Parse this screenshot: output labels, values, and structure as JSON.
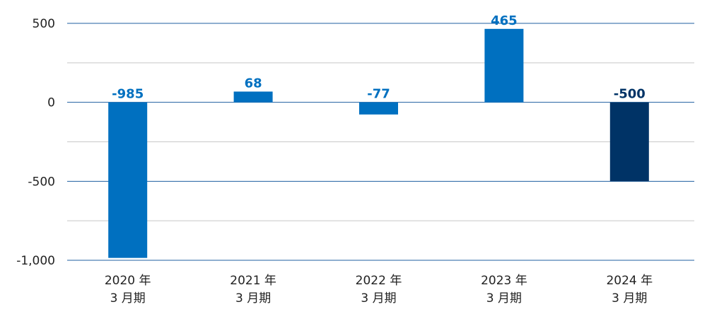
{
  "chart_data": {
    "type": "bar",
    "title": "",
    "xlabel": "",
    "ylabel": "",
    "categories": [
      [
        "2020 年",
        "3 月期"
      ],
      [
        "2021 年",
        "3 月期"
      ],
      [
        "2022 年",
        "3 月期"
      ],
      [
        "2023 年",
        "3 月期"
      ],
      [
        "2024 年",
        "3 月期"
      ]
    ],
    "values": [
      -985,
      68,
      -77,
      465,
      -500
    ],
    "value_labels": [
      "-985",
      "68",
      "-77",
      "465",
      "-500"
    ],
    "ylim": [
      -1000,
      500
    ],
    "yticks": [
      500,
      0,
      -500,
      -1000
    ],
    "ytick_labels": [
      "500",
      "0",
      "-500",
      "-1,000"
    ],
    "minor_gridlines": [
      250,
      -250,
      -750
    ],
    "grid": true,
    "colors": {
      "bar": "#0070c0",
      "bar_highlight": "#003366",
      "major_grid": "#1f5fa0",
      "minor_grid": "#c8c8c8",
      "label": "#0070c0",
      "label_highlight": "#003366"
    },
    "highlight_index": 4
  }
}
